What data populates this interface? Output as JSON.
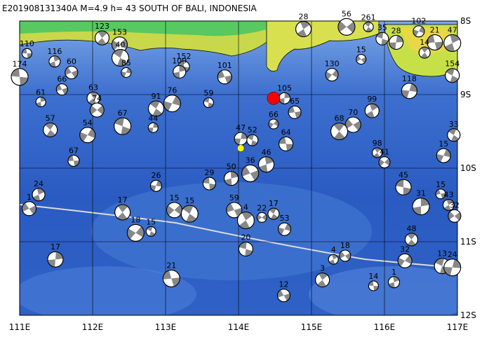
{
  "chart_data": {
    "type": "map",
    "title": "E201908131340A  M=4.9  h= 43  SOUTH OF BALI, INDONESIA",
    "xlim": [
      111,
      117
    ],
    "ylim": [
      -12,
      -8
    ],
    "xticks": [
      {
        "value": 111,
        "label": "111E"
      },
      {
        "value": 112,
        "label": "112E"
      },
      {
        "value": 113,
        "label": "113E"
      },
      {
        "value": 114,
        "label": "114E"
      },
      {
        "value": 115,
        "label": "115E"
      },
      {
        "value": 116,
        "label": "116E"
      },
      {
        "value": 117,
        "label": "117E"
      }
    ],
    "yticks": [
      {
        "value": -8,
        "label": "8S"
      },
      {
        "value": -9,
        "label": "9S"
      },
      {
        "value": -10,
        "label": "10S"
      },
      {
        "value": -11,
        "label": "11S"
      },
      {
        "value": -12,
        "label": "12S"
      }
    ],
    "grid": true,
    "markers": [
      {
        "lon": 114.48,
        "lat": -9.05,
        "color": "#ff0000"
      },
      {
        "lon": 114.03,
        "lat": -9.73,
        "color": "#ffff00"
      }
    ],
    "events": [
      {
        "lon": 111.1,
        "lat": -8.44,
        "depth": 110
      },
      {
        "lon": 111.48,
        "lat": -8.55,
        "depth": 116
      },
      {
        "lon": 111.71,
        "lat": -8.7,
        "depth": 60
      },
      {
        "lon": 112.13,
        "lat": -8.23,
        "depth": 123
      },
      {
        "lon": 112.37,
        "lat": -8.32,
        "depth": 153
      },
      {
        "lon": 112.38,
        "lat": -8.5,
        "depth": 40
      },
      {
        "lon": 112.46,
        "lat": -8.7,
        "depth": 85
      },
      {
        "lon": 113.25,
        "lat": -8.62,
        "depth": 152
      },
      {
        "lon": 113.19,
        "lat": -8.69,
        "depth": 109
      },
      {
        "lon": 113.81,
        "lat": -8.76,
        "depth": 101
      },
      {
        "lon": 114.89,
        "lat": -8.11,
        "depth": 28
      },
      {
        "lon": 115.48,
        "lat": -8.08,
        "depth": 56
      },
      {
        "lon": 115.78,
        "lat": -8.08,
        "depth": 261
      },
      {
        "lon": 116.47,
        "lat": -8.14,
        "depth": 102
      },
      {
        "lon": 115.97,
        "lat": -8.24,
        "depth": 35
      },
      {
        "lon": 116.16,
        "lat": -8.29,
        "depth": 28
      },
      {
        "lon": 116.69,
        "lat": -8.29,
        "depth": 21
      },
      {
        "lon": 116.93,
        "lat": -8.3,
        "depth": 47
      },
      {
        "lon": 115.68,
        "lat": -8.52,
        "depth": 15
      },
      {
        "lon": 116.55,
        "lat": -8.43,
        "depth": 14
      },
      {
        "lon": 115.28,
        "lat": -8.73,
        "depth": 130
      },
      {
        "lon": 116.93,
        "lat": -8.74,
        "depth": 154
      },
      {
        "lon": 116.34,
        "lat": -8.95,
        "depth": 118
      },
      {
        "lon": 111.0,
        "lat": -8.76,
        "depth": 174
      },
      {
        "lon": 111.29,
        "lat": -9.1,
        "depth": 61
      },
      {
        "lon": 111.58,
        "lat": -8.93,
        "depth": 66
      },
      {
        "lon": 112.01,
        "lat": -9.05,
        "depth": 63
      },
      {
        "lon": 112.06,
        "lat": -9.21,
        "depth": 74
      },
      {
        "lon": 112.87,
        "lat": -9.19,
        "depth": 91
      },
      {
        "lon": 113.09,
        "lat": -9.12,
        "depth": 76
      },
      {
        "lon": 113.59,
        "lat": -9.11,
        "depth": 59
      },
      {
        "lon": 114.63,
        "lat": -9.05,
        "depth": 105
      },
      {
        "lon": 114.77,
        "lat": -9.24,
        "depth": 65
      },
      {
        "lon": 115.83,
        "lat": -9.22,
        "depth": 99
      },
      {
        "lon": 115.57,
        "lat": -9.41,
        "depth": 70
      },
      {
        "lon": 115.38,
        "lat": -9.5,
        "depth": 68
      },
      {
        "lon": 114.48,
        "lat": -9.4,
        "depth": 66
      },
      {
        "lon": 114.19,
        "lat": -9.62,
        "depth": 52
      },
      {
        "lon": 114.03,
        "lat": -9.6,
        "depth": 47
      },
      {
        "lon": 114.65,
        "lat": -9.67,
        "depth": 64
      },
      {
        "lon": 114.38,
        "lat": -9.95,
        "depth": 46
      },
      {
        "lon": 114.16,
        "lat": -10.07,
        "depth": 36
      },
      {
        "lon": 115.9,
        "lat": -9.79,
        "depth": 98
      },
      {
        "lon": 116.0,
        "lat": -9.92,
        "depth": 41
      },
      {
        "lon": 116.95,
        "lat": -9.55,
        "depth": 33
      },
      {
        "lon": 116.81,
        "lat": -9.83,
        "depth": 15
      },
      {
        "lon": 116.26,
        "lat": -10.26,
        "depth": 45
      },
      {
        "lon": 116.5,
        "lat": -10.52,
        "depth": 31
      },
      {
        "lon": 116.77,
        "lat": -10.35,
        "depth": 15
      },
      {
        "lon": 116.88,
        "lat": -10.5,
        "depth": 43
      },
      {
        "lon": 116.96,
        "lat": -10.65,
        "depth": 32
      },
      {
        "lon": 111.42,
        "lat": -9.48,
        "depth": 57
      },
      {
        "lon": 111.93,
        "lat": -9.55,
        "depth": 54
      },
      {
        "lon": 112.41,
        "lat": -9.43,
        "depth": 67
      },
      {
        "lon": 112.83,
        "lat": -9.45,
        "depth": 44
      },
      {
        "lon": 111.74,
        "lat": -9.9,
        "depth": 67
      },
      {
        "lon": 111.26,
        "lat": -10.36,
        "depth": 24
      },
      {
        "lon": 111.13,
        "lat": -10.55,
        "depth": 1
      },
      {
        "lon": 112.41,
        "lat": -10.6,
        "depth": 17
      },
      {
        "lon": 112.59,
        "lat": -10.88,
        "depth": 18
      },
      {
        "lon": 112.8,
        "lat": -10.86,
        "depth": 15
      },
      {
        "lon": 112.87,
        "lat": -10.24,
        "depth": 26
      },
      {
        "lon": 113.6,
        "lat": -10.21,
        "depth": 29
      },
      {
        "lon": 113.9,
        "lat": -10.14,
        "depth": 50
      },
      {
        "lon": 113.94,
        "lat": -10.57,
        "depth": 59
      },
      {
        "lon": 114.1,
        "lat": -10.71,
        "depth": 4
      },
      {
        "lon": 114.32,
        "lat": -10.67,
        "depth": 22
      },
      {
        "lon": 114.48,
        "lat": -10.62,
        "depth": 17
      },
      {
        "lon": 114.63,
        "lat": -10.83,
        "depth": 53
      },
      {
        "lon": 114.1,
        "lat": -11.1,
        "depth": 20
      },
      {
        "lon": 111.49,
        "lat": -11.24,
        "depth": 17
      },
      {
        "lon": 113.08,
        "lat": -11.5,
        "depth": 21
      },
      {
        "lon": 115.3,
        "lat": -11.24,
        "depth": 4
      },
      {
        "lon": 115.46,
        "lat": -11.19,
        "depth": 18
      },
      {
        "lon": 116.37,
        "lat": -10.97,
        "depth": 48
      },
      {
        "lon": 116.28,
        "lat": -11.26,
        "depth": 32
      },
      {
        "lon": 116.79,
        "lat": -11.33,
        "depth": 13
      },
      {
        "lon": 116.93,
        "lat": -11.35,
        "depth": 24
      },
      {
        "lon": 115.85,
        "lat": -11.6,
        "depth": 14
      },
      {
        "lon": 116.13,
        "lat": -11.55,
        "depth": 1
      },
      {
        "lon": 114.62,
        "lat": -11.73,
        "depth": 12
      },
      {
        "lon": 115.15,
        "lat": -11.52,
        "depth": 3
      },
      {
        "lon": 113.12,
        "lat": -10.57,
        "depth": 15
      },
      {
        "lon": 113.33,
        "lat": -10.62,
        "depth": 15
      }
    ]
  }
}
